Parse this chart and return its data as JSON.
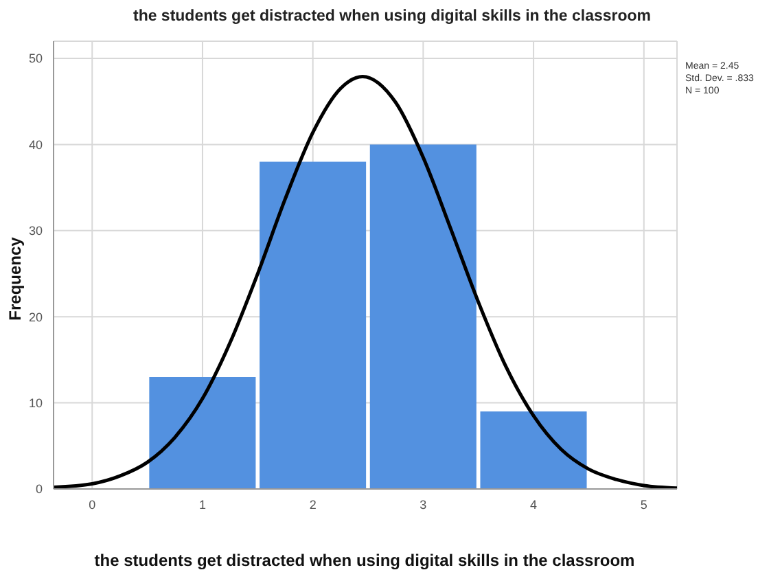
{
  "chart_data": {
    "type": "histogram",
    "title": "the students get distracted when using digital skills in the classroom",
    "xlabel": "the students get distracted when using digital skills in the classroom",
    "ylabel": "Frequency",
    "bins": [
      0.5,
      1.5,
      2.5,
      3.5,
      4.5
    ],
    "values": [
      13,
      38,
      40,
      9
    ],
    "color": "#5391e0",
    "series": [
      {
        "type": "line",
        "color": "#000000",
        "x": [
          -0.35,
          0,
          0.25,
          0.5,
          0.75,
          1,
          1.25,
          1.5,
          1.75,
          2,
          2.25,
          2.45,
          2.75,
          3,
          3.25,
          3.5,
          3.75,
          4,
          4.25,
          4.5,
          4.75,
          5,
          5.3
        ],
        "values": [
          0.2,
          0.6,
          1.5,
          3.1,
          6,
          10.5,
          17,
          25,
          33.7,
          41.4,
          46.5,
          47.9,
          44.9,
          38.5,
          30.2,
          21.7,
          14.2,
          8.5,
          4.6,
          2.3,
          1.1,
          0.4,
          0.1
        ]
      }
    ],
    "annotations": [
      "Mean = 2.45",
      "Std. Dev. = .833",
      "N = 100"
    ],
    "xlim": [
      -0.35,
      5.3
    ],
    "xticks": [
      0,
      1,
      2,
      3,
      4,
      5
    ],
    "ylim": [
      0,
      52
    ],
    "yticks": [
      0,
      10,
      20,
      30,
      40,
      50
    ],
    "grid": true,
    "marker": "none"
  }
}
